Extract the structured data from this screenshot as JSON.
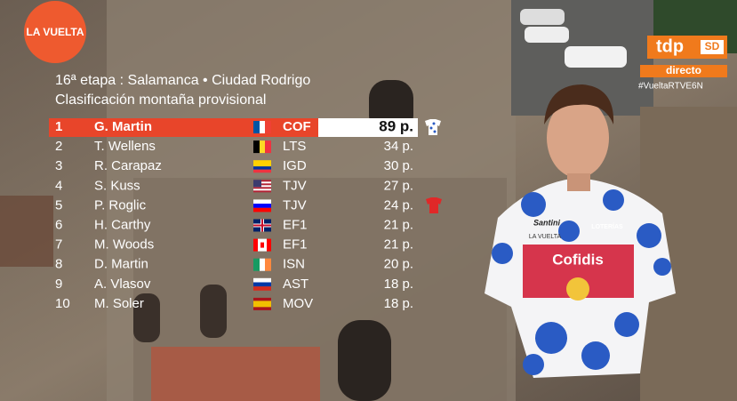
{
  "logo": "LA VUELTA",
  "broadcaster": {
    "name": "tdp",
    "quality": "SD",
    "status": "directo",
    "hashtag": "#VueltaRTVE6N"
  },
  "header": {
    "stage": "16ª etapa : Salamanca • Ciudad Rodrigo",
    "title": "Clasificación montaña provisional"
  },
  "table": {
    "rows": [
      [
        "1",
        "G. Martin",
        "COF",
        "89 p."
      ],
      [
        "2",
        "T. Wellens",
        "LTS",
        "34 p."
      ],
      [
        "3",
        "R. Carapaz",
        "IGD",
        "30 p."
      ],
      [
        "4",
        "S. Kuss",
        "TJV",
        "27 p."
      ],
      [
        "5",
        "P. Roglic",
        "TJV",
        "24 p."
      ],
      [
        "6",
        "H. Carthy",
        "EF1",
        "21 p."
      ],
      [
        "7",
        "M. Woods",
        "EF1",
        "21 p."
      ],
      [
        "8",
        "D. Martin",
        "ISN",
        "20 p."
      ],
      [
        "9",
        "A. Vlasov",
        "AST",
        "18 p."
      ],
      [
        "10",
        "M. Soler",
        "MOV",
        "18 p."
      ]
    ]
  },
  "jersey": {
    "sponsor": "Cofidis",
    "maker": "Santini",
    "sleeve": "LOTERÍAS",
    "collar": "LA VUELTA"
  }
}
